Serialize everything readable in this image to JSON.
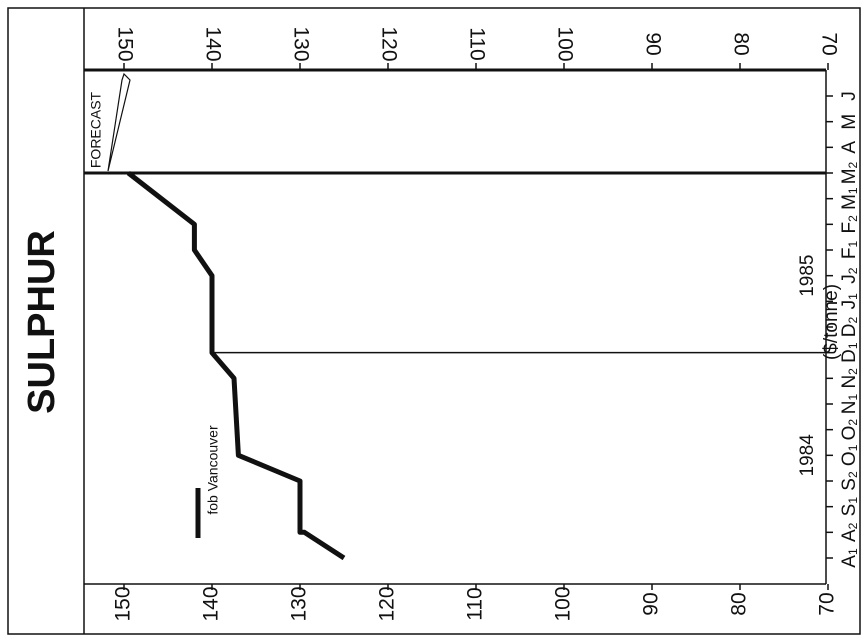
{
  "chart_data": {
    "type": "line",
    "title": "SULPHUR",
    "ylabel": "($/tonne)",
    "ylim": [
      70,
      155
    ],
    "y_ticks": [
      150,
      140,
      130,
      120,
      110,
      100,
      90,
      80,
      70
    ],
    "categories": [
      "A1",
      "A2",
      "S1",
      "S2",
      "O1",
      "O2",
      "N1",
      "N2",
      "D1",
      "D2",
      "J1",
      "J2",
      "F1",
      "F2",
      "M1",
      "M2",
      "A",
      "M",
      "J"
    ],
    "year_labels": [
      {
        "label": "1984",
        "at": "O1"
      },
      {
        "label": "1985",
        "at": "J2"
      }
    ],
    "series": [
      {
        "name": "fob Vancouver",
        "points": [
          [
            "A1",
            125
          ],
          [
            "A2",
            129.5
          ],
          [
            "A2",
            130
          ],
          [
            "S2",
            130
          ],
          [
            "O1",
            137
          ],
          [
            "N2",
            137.5
          ],
          [
            "D1",
            140
          ],
          [
            "J2",
            140
          ],
          [
            "F1",
            142
          ],
          [
            "F2",
            142
          ],
          [
            "M2",
            149.5
          ]
        ]
      }
    ],
    "forecast_start": "M2",
    "marker_at": "D1",
    "annotation": "FORECAST",
    "legend": "left"
  }
}
